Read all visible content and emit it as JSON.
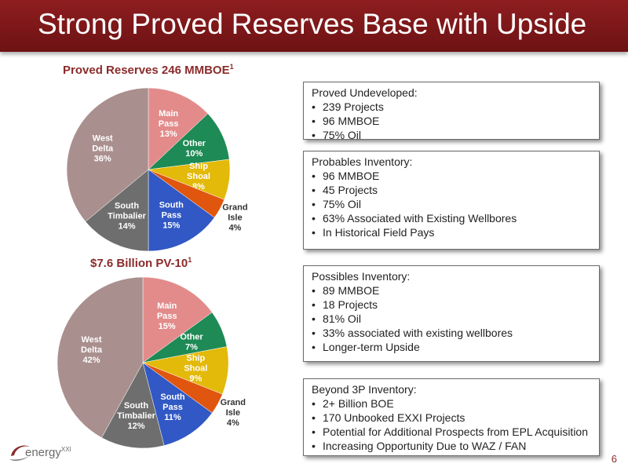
{
  "header": {
    "title": "Strong Proved Reserves Base with Upside"
  },
  "chart_data": [
    {
      "type": "pie",
      "title": "Proved Reserves  246 MMBOE",
      "title_sup": "1",
      "slices": [
        {
          "name": "Main Pass",
          "label_lines": [
            "Main",
            "Pass",
            "13%"
          ],
          "value": 13,
          "color": "#e38b8b"
        },
        {
          "name": "Other",
          "label_lines": [
            "Other",
            "10%"
          ],
          "value": 10,
          "color": "#1e8a55"
        },
        {
          "name": "Ship Shoal",
          "label_lines": [
            "Ship",
            "Shoal",
            "8%"
          ],
          "value": 8,
          "color": "#e3b90a"
        },
        {
          "name": "Grand Isle",
          "label_lines": [
            "Grand",
            "Isle",
            "4%"
          ],
          "value": 4,
          "color": "#e0560f"
        },
        {
          "name": "South Pass",
          "label_lines": [
            "South",
            "Pass",
            "15%"
          ],
          "value": 15,
          "color": "#3158c4"
        },
        {
          "name": "South Timbalier",
          "label_lines": [
            "South",
            "Timbalier",
            "14%"
          ],
          "value": 14,
          "color": "#6e6e6e"
        },
        {
          "name": "West Delta",
          "label_lines": [
            "West",
            "Delta",
            "36%"
          ],
          "value": 36,
          "color": "#aa8f8f"
        }
      ]
    },
    {
      "type": "pie",
      "title": "$7.6 Billion PV-10",
      "title_sup": "1",
      "slices": [
        {
          "name": "Main Pass",
          "label_lines": [
            "Main",
            "Pass",
            "15%"
          ],
          "value": 15,
          "color": "#e38b8b"
        },
        {
          "name": "Other",
          "label_lines": [
            "Other",
            "7%"
          ],
          "value": 7,
          "color": "#1e8a55"
        },
        {
          "name": "Ship Shoal",
          "label_lines": [
            "Ship",
            "Shoal",
            "9%"
          ],
          "value": 9,
          "color": "#e3b90a"
        },
        {
          "name": "Grand Isle",
          "label_lines": [
            "Grand",
            "Isle",
            "4%"
          ],
          "value": 4,
          "color": "#e0560f"
        },
        {
          "name": "South Pass",
          "label_lines": [
            "South",
            "Pass",
            "11%"
          ],
          "value": 11,
          "color": "#3158c4"
        },
        {
          "name": "South Timbalier",
          "label_lines": [
            "South",
            "Timbalier",
            "12%"
          ],
          "value": 12,
          "color": "#6e6e6e"
        },
        {
          "name": "West Delta",
          "label_lines": [
            "West",
            "Delta",
            "42%"
          ],
          "value": 42,
          "color": "#aa8f8f"
        }
      ]
    }
  ],
  "boxes": [
    {
      "title": "Proved Undeveloped:",
      "items": [
        "239 Projects",
        "96 MMBOE",
        "75% Oil"
      ]
    },
    {
      "title": "Probables Inventory:",
      "items": [
        "96 MMBOE",
        "45 Projects",
        "75% Oil",
        "63% Associated with Existing Wellbores",
        "In Historical Field Pays"
      ]
    },
    {
      "title": "Possibles Inventory:",
      "items": [
        "89 MMBOE",
        "18 Projects",
        "81% Oil",
        "33% associated with existing wellbores",
        "Longer-term Upside"
      ]
    },
    {
      "title": "Beyond 3P Inventory:",
      "items": [
        "2+ Billion BOE",
        "170 Unbooked EXXI Projects",
        "Potential for Additional Prospects from EPL Acquisition",
        "Increasing Opportunity Due to WAZ / FAN"
      ]
    }
  ],
  "logo": {
    "text": "energy",
    "sup": "XXI"
  },
  "footer": {
    "page_number": "6"
  }
}
